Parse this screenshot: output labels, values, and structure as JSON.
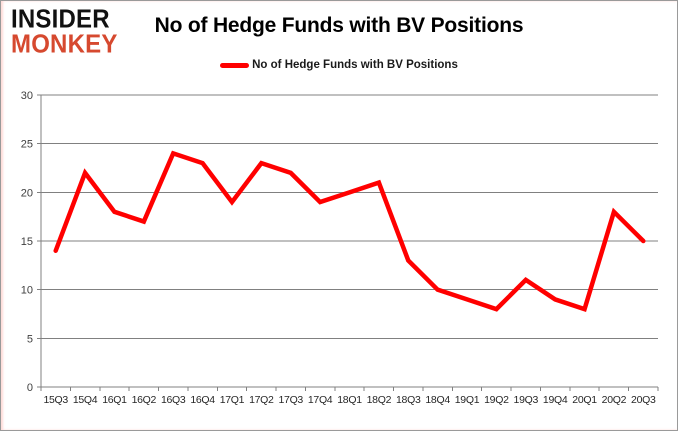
{
  "logo": {
    "line1": "INSIDER",
    "line2": "MONKEY",
    "line1_color": "#111111",
    "line2_color": "#d6492f"
  },
  "header": {
    "title": "No of Hedge Funds with BV Positions"
  },
  "legend": {
    "label": "No of Hedge Funds with BV Positions",
    "swatch_color": "#ff0000"
  },
  "chart_data": {
    "type": "line",
    "title": "No of Hedge Funds with BV Positions",
    "categories": [
      "15Q3",
      "15Q4",
      "16Q1",
      "16Q2",
      "16Q3",
      "16Q4",
      "17Q1",
      "17Q2",
      "17Q3",
      "17Q4",
      "18Q1",
      "18Q2",
      "18Q3",
      "18Q4",
      "19Q1",
      "19Q2",
      "19Q3",
      "19Q4",
      "20Q1",
      "20Q2",
      "20Q3"
    ],
    "series": [
      {
        "name": "No of Hedge Funds with BV Positions",
        "color": "#ff0000",
        "values": [
          14,
          22,
          18,
          17,
          24,
          23,
          19,
          23,
          22,
          19,
          20,
          21,
          13,
          10,
          9,
          8,
          11,
          9,
          8,
          18,
          15
        ]
      }
    ],
    "xlabel": "",
    "ylabel": "",
    "ylim": [
      0,
      30
    ],
    "yticks": [
      0,
      5,
      10,
      15,
      20,
      25,
      30
    ],
    "grid": true,
    "legend_position": "top",
    "axis_color": "#808080",
    "line_width": 4.5
  }
}
